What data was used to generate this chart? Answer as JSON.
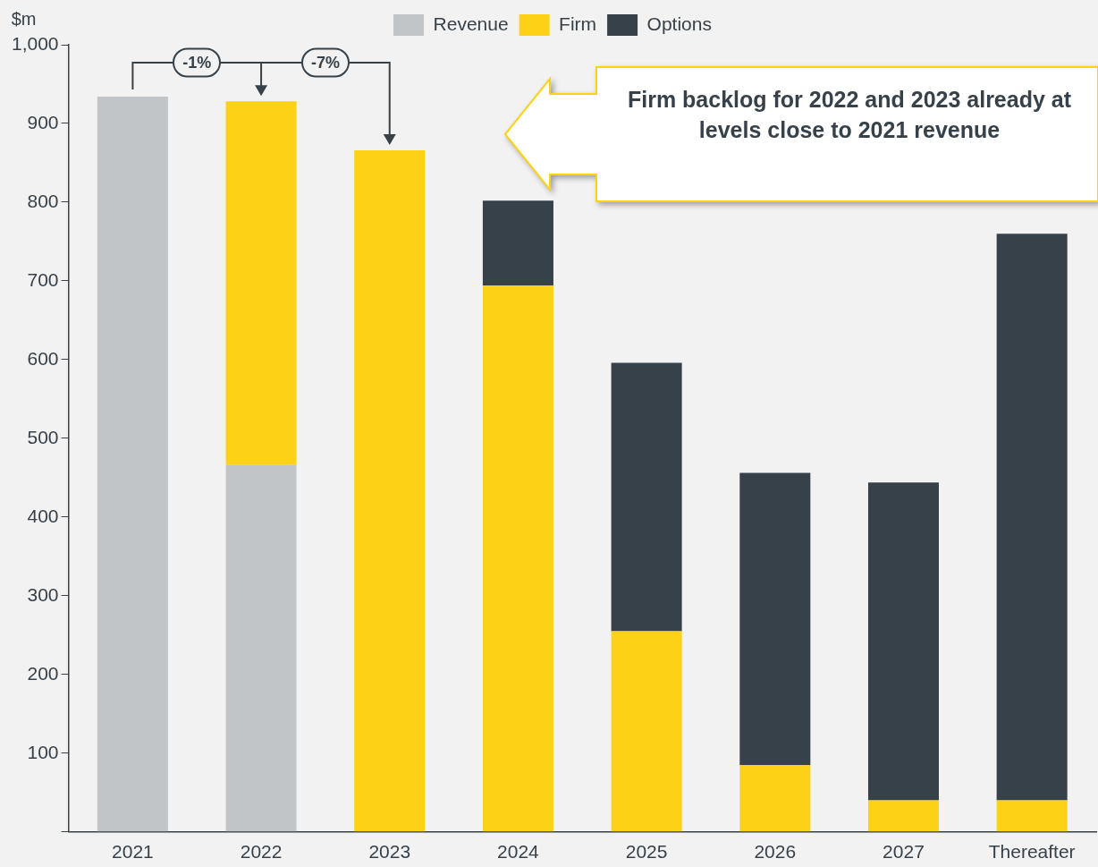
{
  "chart_data": {
    "type": "bar",
    "stacked": true,
    "ylabel": "$m",
    "categories": [
      "2021",
      "2022",
      "2023",
      "2024",
      "2025",
      "2026",
      "2027",
      "Thereafter"
    ],
    "series": [
      {
        "name": "Revenue",
        "color": "#c2c5c8",
        "values": [
          934,
          466,
          null,
          null,
          null,
          null,
          null,
          null
        ]
      },
      {
        "name": "Firm",
        "color": "#fcd116",
        "values": [
          null,
          462,
          866,
          694,
          255,
          85,
          40,
          40
        ]
      },
      {
        "name": "Options",
        "color": "#37414a",
        "values": [
          null,
          null,
          null,
          108,
          341,
          371,
          404,
          720
        ]
      }
    ],
    "ylim": [
      0,
      1000
    ],
    "yticks": [
      {
        "value": 0,
        "label": null
      },
      100,
      200,
      300,
      400,
      500,
      600,
      700,
      800,
      900,
      {
        "value": 1000,
        "label": "1,000"
      }
    ],
    "legend": "top",
    "annotations": [
      "-1%",
      "-7%",
      "Firm backlog for 2022 and 2023 already at levels close to 2021 revenue"
    ]
  }
}
